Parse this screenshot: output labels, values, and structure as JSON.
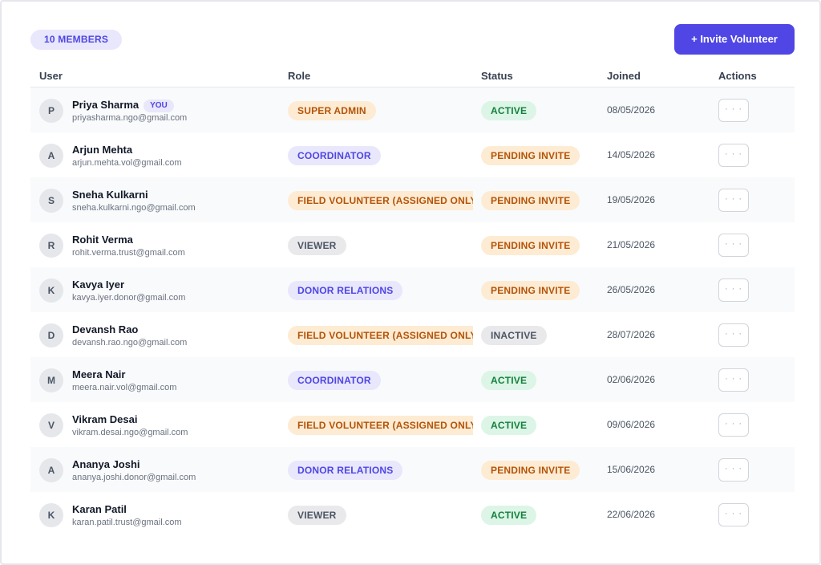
{
  "header": {
    "members_count": "10 MEMBERS",
    "invite_button": "+ Invite Volunteer"
  },
  "table": {
    "columns": [
      "User",
      "Role",
      "Status",
      "Joined",
      "Actions"
    ],
    "action_glyph": "· · ·",
    "rows": [
      {
        "initial": "P",
        "name": "Priya Sharma",
        "you": "YOU",
        "email": "priyasharma.ngo@gmail.com",
        "role": "SUPER ADMIN",
        "role_color": "orange",
        "status": "ACTIVE",
        "status_color": "green",
        "joined": "08/05/2026"
      },
      {
        "initial": "A",
        "name": "Arjun Mehta",
        "email": "arjun.mehta.vol@gmail.com",
        "role": "COORDINATOR",
        "role_color": "indigo",
        "status": "PENDING INVITE",
        "status_color": "orange",
        "joined": "14/05/2026"
      },
      {
        "initial": "S",
        "name": "Sneha Kulkarni",
        "email": "sneha.kulkarni.ngo@gmail.com",
        "role": "FIELD VOLUNTEER (ASSIGNED ONLY)",
        "role_color": "orange",
        "status": "PENDING INVITE",
        "status_color": "orange",
        "joined": "19/05/2026"
      },
      {
        "initial": "R",
        "name": "Rohit Verma",
        "email": "rohit.verma.trust@gmail.com",
        "role": "VIEWER",
        "role_color": "gray",
        "status": "PENDING INVITE",
        "status_color": "orange",
        "joined": "21/05/2026"
      },
      {
        "initial": "K",
        "name": "Kavya Iyer",
        "email": "kavya.iyer.donor@gmail.com",
        "role": "DONOR RELATIONS",
        "role_color": "indigo",
        "status": "PENDING INVITE",
        "status_color": "orange",
        "joined": "26/05/2026"
      },
      {
        "initial": "D",
        "name": "Devansh Rao",
        "email": "devansh.rao.ngo@gmail.com",
        "role": "FIELD VOLUNTEER (ASSIGNED ONLY)",
        "role_color": "orange",
        "status": "INACTIVE",
        "status_color": "gray",
        "joined": "28/07/2026"
      },
      {
        "initial": "M",
        "name": "Meera Nair",
        "email": "meera.nair.vol@gmail.com",
        "role": "COORDINATOR",
        "role_color": "indigo",
        "status": "ACTIVE",
        "status_color": "green",
        "joined": "02/06/2026"
      },
      {
        "initial": "V",
        "name": "Vikram Desai",
        "email": "vikram.desai.ngo@gmail.com",
        "role": "FIELD VOLUNTEER (ASSIGNED ONLY)",
        "role_color": "orange",
        "status": "ACTIVE",
        "status_color": "green",
        "joined": "09/06/2026"
      },
      {
        "initial": "A",
        "name": "Ananya Joshi",
        "email": "ananya.joshi.donor@gmail.com",
        "role": "DONOR RELATIONS",
        "role_color": "indigo",
        "status": "PENDING INVITE",
        "status_color": "orange",
        "joined": "15/06/2026"
      },
      {
        "initial": "K",
        "name": "Karan Patil",
        "email": "karan.patil.trust@gmail.com",
        "role": "VIEWER",
        "role_color": "gray",
        "status": "ACTIVE",
        "status_color": "green",
        "joined": "22/06/2026"
      }
    ]
  },
  "colors": {
    "accent": "#4f46e5",
    "orange": "#b45309",
    "indigo": "#4f46e5",
    "gray": "#4b5563",
    "green": "#15803d"
  }
}
